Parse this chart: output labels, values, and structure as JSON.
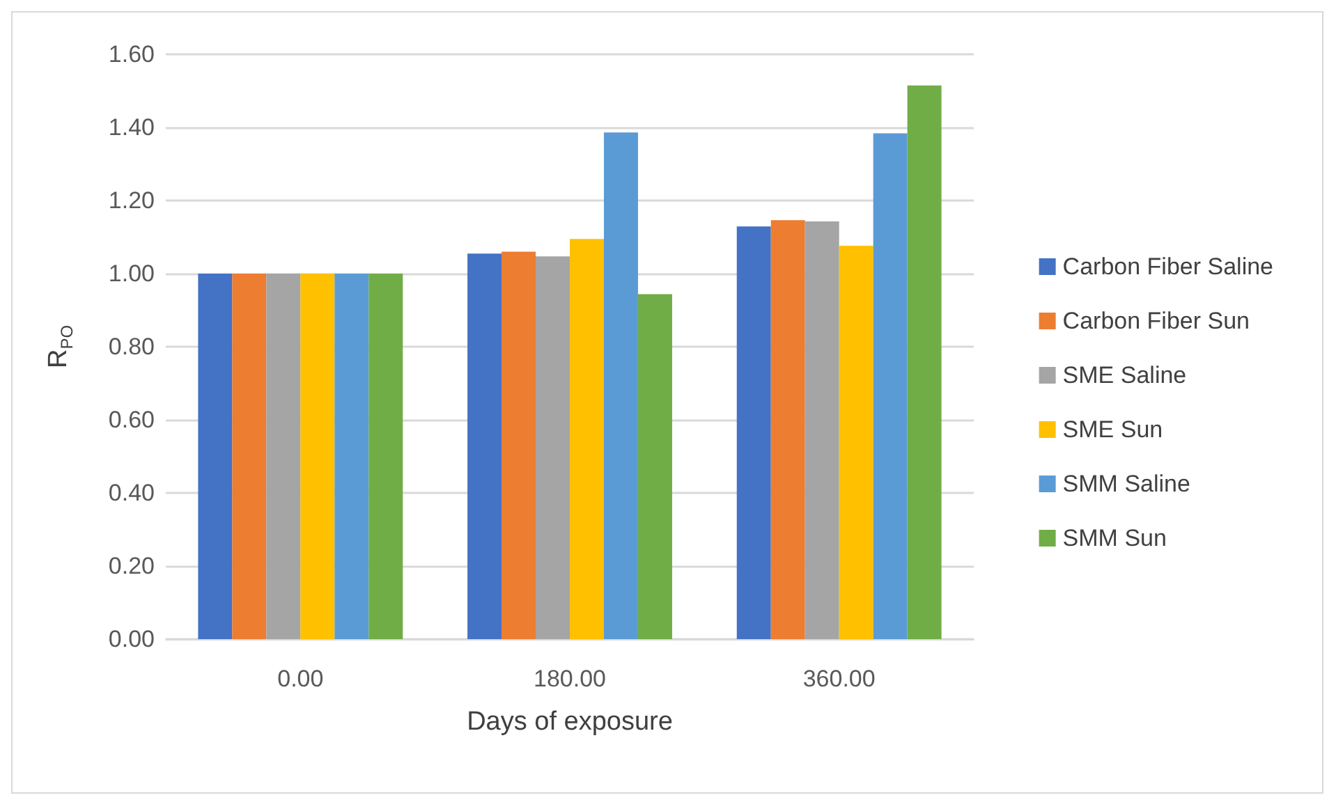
{
  "chart_data": {
    "type": "bar",
    "xlabel": "Days of exposure",
    "ylabel": "R$_{PO}$",
    "categories": [
      "0.00",
      "180.00",
      "360.00"
    ],
    "series": [
      {
        "name": "Carbon Fiber Saline",
        "color": "#4472c4",
        "values": [
          1.0,
          1.055,
          1.129
        ]
      },
      {
        "name": "Carbon Fiber Sun",
        "color": "#ed7d31",
        "values": [
          1.0,
          1.06,
          1.146
        ]
      },
      {
        "name": "SME Saline",
        "color": "#a5a5a5",
        "values": [
          1.0,
          1.047,
          1.143
        ]
      },
      {
        "name": "SME Sun",
        "color": "#ffc000",
        "values": [
          1.0,
          1.095,
          1.076
        ]
      },
      {
        "name": "SMM Saline",
        "color": "#5b9bd5",
        "values": [
          1.0,
          1.386,
          1.384
        ]
      },
      {
        "name": "SMM Sun",
        "color": "#70ad47",
        "values": [
          1.0,
          0.944,
          1.515
        ]
      }
    ],
    "ylim": [
      0,
      1.6
    ],
    "yticks": [
      {
        "value": 0,
        "label": "0.00"
      },
      {
        "value": 0.2,
        "label": "0.20"
      },
      {
        "value": 0.4,
        "label": "0.40"
      },
      {
        "value": 0.6,
        "label": "0.60"
      },
      {
        "value": 0.8,
        "label": "0.80"
      },
      {
        "value": 1,
        "label": "1.00"
      },
      {
        "value": 1.2,
        "label": "1.20"
      },
      {
        "value": 1.4,
        "label": "1.40"
      },
      {
        "value": 1.6,
        "label": "1.60"
      }
    ],
    "grid": "y",
    "legend": "right"
  }
}
